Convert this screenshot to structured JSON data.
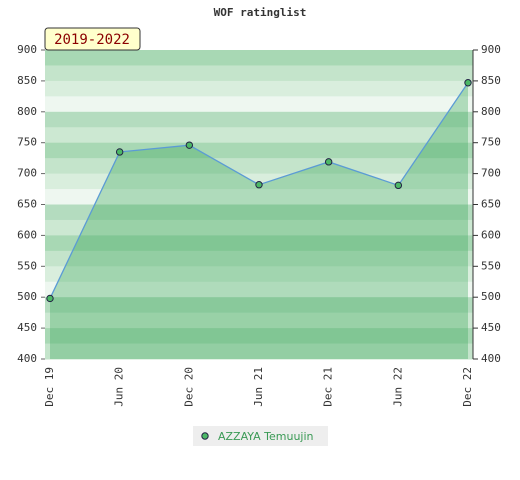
{
  "chart_data": {
    "type": "line",
    "title": "WOF ratinglist",
    "badge": "2019-2022",
    "categories": [
      "Dec 19",
      "Jun 20",
      "Dec 20",
      "Jun 21",
      "Dec 21",
      "Jun 22",
      "Dec 22"
    ],
    "series": [
      {
        "name": "AZZAYA Temuujin",
        "color": "#5b9bd5",
        "values": [
          498,
          735,
          746,
          682,
          719,
          681,
          847
        ]
      }
    ],
    "ylim": [
      400,
      900
    ],
    "yticks": [
      400,
      450,
      500,
      550,
      600,
      650,
      700,
      750,
      800,
      850,
      900
    ],
    "y2lim": [
      400,
      900
    ],
    "y2ticks": [
      400,
      450,
      500,
      550,
      600,
      650,
      700,
      750,
      800,
      850,
      900
    ],
    "legend": "bottom"
  }
}
